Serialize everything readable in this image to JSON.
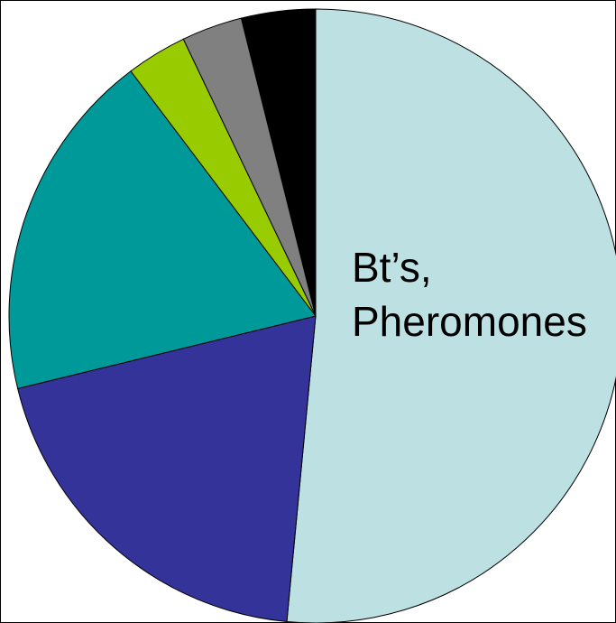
{
  "chart_data": {
    "type": "pie",
    "categories": [
      "Bt’s, Pheromones",
      null,
      null,
      null,
      null,
      null
    ],
    "values": [
      51.5,
      19.7,
      18.5,
      3.2,
      3.2,
      3.9
    ],
    "colors": [
      "#bde0e3",
      "#333399",
      "#009999",
      "#99cc00",
      "#808080",
      "#000000"
    ]
  }
}
